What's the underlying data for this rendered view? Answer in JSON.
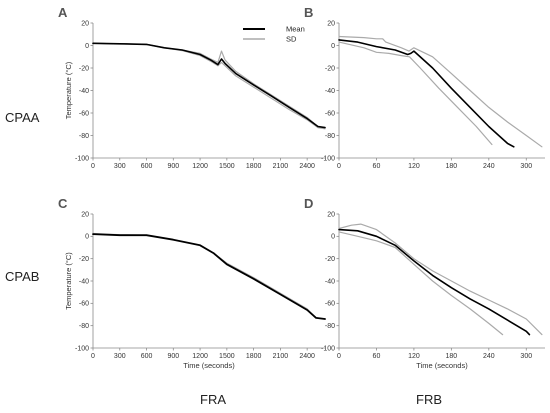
{
  "row_labels": [
    "CPAA",
    "CPAB"
  ],
  "col_labels": [
    "FRA",
    "FRB"
  ],
  "chart_data": [
    {
      "id": "A",
      "type": "line",
      "letter": "A",
      "ylabel": "Temperature (°C)",
      "xlabel": "",
      "xlim": [
        0,
        2600
      ],
      "ylim": [
        -100,
        20
      ],
      "xticks": [
        0,
        300,
        600,
        900,
        1200,
        1500,
        1800,
        2100,
        2400
      ],
      "yticks": [
        20,
        0,
        -20,
        -40,
        -60,
        -80,
        -100
      ],
      "legend": {
        "entries": [
          {
            "name": "Mean",
            "color": "#000000"
          },
          {
            "name": "SD",
            "color": "#aaaaaa"
          }
        ],
        "placement": "top-right"
      },
      "series": [
        {
          "name": "Mean",
          "color": "#000000",
          "width": 1.6,
          "points": [
            [
              0,
              2
            ],
            [
              300,
              1.5
            ],
            [
              600,
              1
            ],
            [
              800,
              -2
            ],
            [
              1000,
              -4
            ],
            [
              1200,
              -8
            ],
            [
              1320,
              -13
            ],
            [
              1400,
              -17
            ],
            [
              1440,
              -12
            ],
            [
              1480,
              -16
            ],
            [
              1600,
              -25
            ],
            [
              1800,
              -35
            ],
            [
              2000,
              -45
            ],
            [
              2200,
              -55
            ],
            [
              2400,
              -65
            ],
            [
              2520,
              -72
            ],
            [
              2600,
              -73
            ]
          ]
        },
        {
          "name": "SD",
          "color": "#aaaaaa",
          "width": 1.2,
          "points": [
            [
              0,
              2
            ],
            [
              300,
              1.5
            ],
            [
              600,
              1
            ],
            [
              800,
              -2
            ],
            [
              1000,
              -4
            ],
            [
              1200,
              -7
            ],
            [
              1320,
              -12
            ],
            [
              1400,
              -15
            ],
            [
              1440,
              -5
            ],
            [
              1480,
              -13
            ],
            [
              1600,
              -23
            ],
            [
              1800,
              -34
            ],
            [
              2000,
              -44
            ],
            [
              2200,
              -54
            ],
            [
              2400,
              -64
            ],
            [
              2520,
              -72
            ],
            [
              2600,
              -73
            ]
          ]
        },
        {
          "name": "SD",
          "color": "#aaaaaa",
          "width": 1.2,
          "points": [
            [
              0,
              2
            ],
            [
              300,
              1.5
            ],
            [
              600,
              1
            ],
            [
              800,
              -2
            ],
            [
              1000,
              -4.5
            ],
            [
              1200,
              -9
            ],
            [
              1320,
              -14
            ],
            [
              1400,
              -18
            ],
            [
              1440,
              -15
            ],
            [
              1480,
              -18
            ],
            [
              1600,
              -27
            ],
            [
              1800,
              -37
            ],
            [
              2000,
              -47
            ],
            [
              2200,
              -57
            ],
            [
              2400,
              -66
            ],
            [
              2520,
              -73
            ],
            [
              2600,
              -74
            ]
          ]
        }
      ]
    },
    {
      "id": "B",
      "type": "line",
      "letter": "B",
      "ylabel": "",
      "xlabel": "",
      "xlim": [
        0,
        330
      ],
      "ylim": [
        -100,
        20
      ],
      "xticks": [
        0,
        60,
        120,
        180,
        240,
        300
      ],
      "yticks": [
        20,
        0,
        -20,
        -40,
        -60,
        -80,
        -100
      ],
      "series": [
        {
          "name": "Mean",
          "color": "#000000",
          "width": 1.6,
          "points": [
            [
              0,
              5
            ],
            [
              30,
              3
            ],
            [
              60,
              -1
            ],
            [
              90,
              -4
            ],
            [
              110,
              -8
            ],
            [
              115,
              -7
            ],
            [
              120,
              -5
            ],
            [
              150,
              -20
            ],
            [
              180,
              -38
            ],
            [
              210,
              -55
            ],
            [
              240,
              -72
            ],
            [
              270,
              -87
            ],
            [
              280,
              -90
            ]
          ]
        },
        {
          "name": "SD",
          "color": "#aaaaaa",
          "width": 1.2,
          "points": [
            [
              0,
              8
            ],
            [
              40,
              7
            ],
            [
              60,
              6
            ],
            [
              70,
              6
            ],
            [
              75,
              3
            ],
            [
              100,
              -2
            ],
            [
              112,
              -5
            ],
            [
              120,
              -2
            ],
            [
              150,
              -10
            ],
            [
              180,
              -25
            ],
            [
              210,
              -40
            ],
            [
              240,
              -55
            ],
            [
              270,
              -68
            ],
            [
              300,
              -80
            ],
            [
              325,
              -90
            ]
          ]
        },
        {
          "name": "SD",
          "color": "#aaaaaa",
          "width": 1.2,
          "points": [
            [
              0,
              3
            ],
            [
              40,
              -2
            ],
            [
              60,
              -6
            ],
            [
              80,
              -7
            ],
            [
              100,
              -9
            ],
            [
              113,
              -10
            ],
            [
              130,
              -20
            ],
            [
              160,
              -38
            ],
            [
              190,
              -55
            ],
            [
              220,
              -72
            ],
            [
              245,
              -88
            ]
          ]
        }
      ]
    },
    {
      "id": "C",
      "type": "line",
      "letter": "C",
      "ylabel": "Temperature (°C)",
      "xlabel": "Time (seconds)",
      "xlim": [
        0,
        2600
      ],
      "ylim": [
        -100,
        20
      ],
      "xticks": [
        0,
        300,
        600,
        900,
        1200,
        1500,
        1800,
        2100,
        2400
      ],
      "yticks": [
        20,
        0,
        -20,
        -40,
        -60,
        -80,
        -100
      ],
      "series": [
        {
          "name": "SD",
          "color": "#aaaaaa",
          "width": 1.2,
          "points": [
            [
              0,
              2.5
            ],
            [
              300,
              1.5
            ],
            [
              600,
              1
            ],
            [
              900,
              -3
            ],
            [
              1200,
              -8
            ],
            [
              1350,
              -15
            ],
            [
              1500,
              -24
            ],
            [
              1800,
              -37
            ],
            [
              2100,
              -51
            ],
            [
              2400,
              -65
            ],
            [
              2500,
              -73
            ],
            [
              2600,
              -74
            ]
          ]
        },
        {
          "name": "Mean",
          "color": "#000000",
          "width": 1.8,
          "points": [
            [
              0,
              2
            ],
            [
              300,
              1
            ],
            [
              600,
              1
            ],
            [
              900,
              -3
            ],
            [
              1200,
              -8
            ],
            [
              1350,
              -15
            ],
            [
              1500,
              -25
            ],
            [
              1800,
              -38
            ],
            [
              2100,
              -52
            ],
            [
              2400,
              -66
            ],
            [
              2500,
              -73
            ],
            [
              2600,
              -74
            ]
          ]
        }
      ]
    },
    {
      "id": "D",
      "type": "line",
      "letter": "D",
      "ylabel": "",
      "xlabel": "Time (seconds)",
      "xlim": [
        0,
        330
      ],
      "ylim": [
        -100,
        20
      ],
      "xticks": [
        0,
        60,
        120,
        180,
        240,
        300
      ],
      "yticks": [
        20,
        0,
        -20,
        -40,
        -60,
        -80,
        -100
      ],
      "series": [
        {
          "name": "Mean",
          "color": "#000000",
          "width": 1.6,
          "points": [
            [
              0,
              6
            ],
            [
              30,
              5
            ],
            [
              60,
              0
            ],
            [
              90,
              -8
            ],
            [
              120,
              -22
            ],
            [
              150,
              -35
            ],
            [
              180,
              -46
            ],
            [
              210,
              -56
            ],
            [
              240,
              -65
            ],
            [
              270,
              -75
            ],
            [
              300,
              -85
            ],
            [
              305,
              -88
            ]
          ]
        },
        {
          "name": "SD",
          "color": "#aaaaaa",
          "width": 1.2,
          "points": [
            [
              0,
              7
            ],
            [
              20,
              10
            ],
            [
              35,
              11
            ],
            [
              60,
              6
            ],
            [
              90,
              -6
            ],
            [
              120,
              -20
            ],
            [
              150,
              -31
            ],
            [
              180,
              -40
            ],
            [
              210,
              -49
            ],
            [
              240,
              -57
            ],
            [
              270,
              -65
            ],
            [
              300,
              -74
            ],
            [
              325,
              -88
            ]
          ]
        },
        {
          "name": "SD",
          "color": "#aaaaaa",
          "width": 1.2,
          "points": [
            [
              0,
              4
            ],
            [
              30,
              0
            ],
            [
              60,
              -4
            ],
            [
              90,
              -10
            ],
            [
              120,
              -25
            ],
            [
              150,
              -40
            ],
            [
              180,
              -53
            ],
            [
              210,
              -65
            ],
            [
              240,
              -78
            ],
            [
              262,
              -88
            ]
          ]
        }
      ]
    }
  ]
}
